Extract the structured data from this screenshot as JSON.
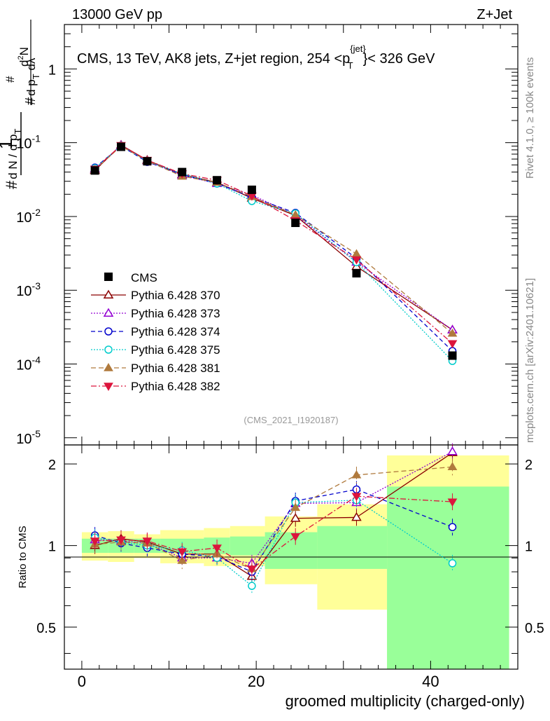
{
  "header": {
    "energy_label": "13000 GeV pp",
    "process_label": "Z+Jet"
  },
  "side_text": {
    "rivet": "Rivet 4.1.0, ≥ 100k events",
    "mcplots": "mcplots.cern.ch [arXiv:2401.10621]"
  },
  "chart_data": {
    "type": "line",
    "title": "CMS, 13 TeV, AK8 jets, Z+jet region, 254 <p_T^{jet}< 326 GeV",
    "watermark": "(CMS_2021_I1920187)",
    "xlabel": "groomed multiplicity (charged-only)",
    "ylabel_main": "1/dN/dp_T  d^2N/dp_T dλ",
    "ylabel_ratio": "Ratio to CMS",
    "xlim": [
      -2,
      50
    ],
    "ylim_main": [
      8e-06,
      4
    ],
    "ylim_ratio": [
      0.35,
      2.35
    ],
    "x_ticks": [
      0,
      20,
      40
    ],
    "ratio_ticks": [
      0.5,
      1,
      2
    ],
    "main_tick_labels": [
      "1",
      "10",
      "10",
      "10",
      "10",
      "10"
    ],
    "main_tick_exponents": [
      "",
      "-1",
      "-2",
      "-3",
      "-4",
      "-5"
    ],
    "x": [
      1.5,
      4.5,
      7.5,
      11.5,
      15.5,
      19.5,
      24.5,
      31.5,
      42.5
    ],
    "bin_edges": [
      0,
      3,
      6,
      9,
      14,
      17,
      21,
      27,
      35,
      49
    ],
    "data": {
      "name": "CMS",
      "values": [
        0.042,
        0.088,
        0.056,
        0.04,
        0.031,
        0.023,
        0.0082,
        0.0017,
        0.00013
      ],
      "band_inner": [
        [
          0.94,
          1.06
        ],
        [
          0.94,
          1.06
        ],
        [
          0.94,
          1.06
        ],
        [
          0.94,
          1.06
        ],
        [
          0.93,
          1.07
        ],
        [
          0.92,
          1.08
        ],
        [
          0.82,
          1.12
        ],
        [
          0.82,
          1.18
        ],
        [
          0.35,
          1.65
        ]
      ],
      "band_outer": [
        [
          0.88,
          1.12
        ],
        [
          0.87,
          1.13
        ],
        [
          0.9,
          1.1
        ],
        [
          0.86,
          1.14
        ],
        [
          0.84,
          1.16
        ],
        [
          0.84,
          1.18
        ],
        [
          0.72,
          1.28
        ],
        [
          0.58,
          1.42
        ],
        [
          0.35,
          2.15
        ]
      ]
    },
    "series": [
      {
        "name": "Pythia 6.428 370",
        "color": "#8b0000",
        "dash": "",
        "marker": "tri-up-open",
        "values": [
          0.042,
          0.093,
          0.058,
          0.037,
          0.029,
          0.0177,
          0.0103,
          0.0021,
          0.00029
        ],
        "ratio": [
          1.0,
          1.06,
          1.03,
          0.93,
          0.93,
          0.77,
          1.26,
          1.27,
          2.2
        ]
      },
      {
        "name": "Pythia 6.428 373",
        "color": "#9400d3",
        "dash": "2,2",
        "marker": "tri-up-open",
        "values": [
          0.044,
          0.092,
          0.057,
          0.036,
          0.028,
          0.0195,
          0.0105,
          0.0024,
          0.00029
        ],
        "ratio": [
          1.05,
          1.04,
          1.02,
          0.9,
          0.9,
          0.86,
          1.43,
          1.44,
          2.22
        ]
      },
      {
        "name": "Pythia 6.428 374",
        "color": "#0000cc",
        "dash": "6,4",
        "marker": "circle-open",
        "values": [
          0.046,
          0.09,
          0.055,
          0.037,
          0.028,
          0.0182,
          0.0112,
          0.0027,
          0.00015
        ],
        "ratio": [
          1.09,
          1.02,
          0.98,
          0.93,
          0.91,
          0.8,
          1.46,
          1.61,
          1.17
        ]
      },
      {
        "name": "Pythia 6.428 375",
        "color": "#00cccc",
        "dash": "2,2",
        "marker": "circle-open",
        "values": [
          0.045,
          0.091,
          0.056,
          0.038,
          0.028,
          0.0162,
          0.011,
          0.0024,
          0.00011
        ],
        "ratio": [
          1.07,
          1.03,
          1.0,
          0.96,
          0.9,
          0.71,
          1.44,
          1.47,
          0.86
        ]
      },
      {
        "name": "Pythia 6.428 381",
        "color": "#b07a3d",
        "dash": "7,4",
        "marker": "tri-up-full",
        "values": [
          0.043,
          0.09,
          0.057,
          0.035,
          0.029,
          0.0185,
          0.0105,
          0.0031,
          0.00026
        ],
        "ratio": [
          1.01,
          1.03,
          1.02,
          0.88,
          0.93,
          0.82,
          1.38,
          1.82,
          1.95
        ]
      },
      {
        "name": "Pythia 6.428 382",
        "color": "#dc143c",
        "dash": "8,3,2,3",
        "marker": "tri-down-full",
        "values": [
          0.044,
          0.092,
          0.058,
          0.038,
          0.031,
          0.019,
          0.0088,
          0.0026,
          0.00019
        ],
        "ratio": [
          1.04,
          1.05,
          1.04,
          0.95,
          0.98,
          0.82,
          1.08,
          1.52,
          1.45
        ]
      }
    ]
  }
}
